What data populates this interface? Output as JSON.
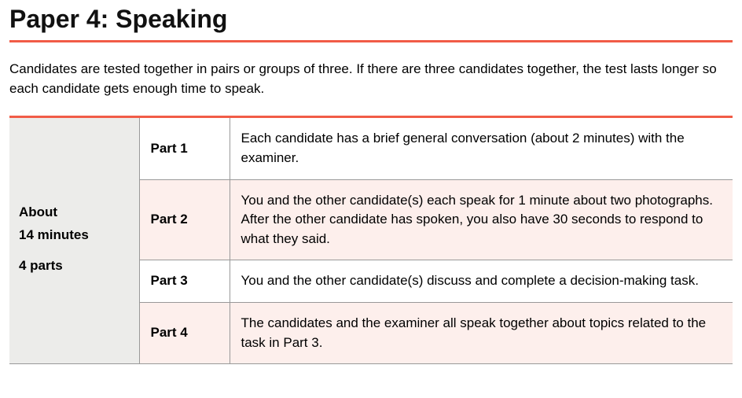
{
  "heading": "Paper 4: Speaking",
  "rule_color": "#f15c47",
  "intro": "Candidates are tested together in pairs or groups of three. If there are three candidates together, the test lasts longer so each candidate gets enough time to speak.",
  "summary": {
    "line1": "About",
    "line2": "14 minutes",
    "line3": "4 parts"
  },
  "colors": {
    "summary_bg": "#ececea",
    "alt_row_bg": "#fdefec",
    "plain_row_bg": "#ffffff",
    "border": "#999999",
    "text": "#000000"
  },
  "parts": [
    {
      "label": "Part 1",
      "desc": "Each candidate has a brief general conversation (about 2 minutes) with the examiner.",
      "alt": false
    },
    {
      "label": "Part 2",
      "desc": "You and the other candidate(s) each speak for 1 minute about two photographs. After the other candidate has spoken, you also have 30 seconds to respond to what they said.",
      "alt": true
    },
    {
      "label": "Part 3",
      "desc": "You and the other candidate(s) discuss and complete a decision-making task.",
      "alt": false
    },
    {
      "label": "Part 4",
      "desc": "The candidates and the examiner all speak together about topics related to the task in Part 3.",
      "alt": true
    }
  ]
}
